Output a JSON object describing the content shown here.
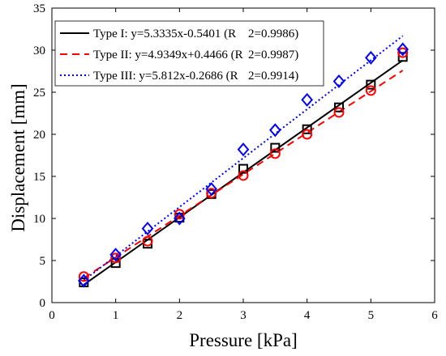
{
  "chart_data": {
    "type": "scatter",
    "xlabel": "Pressure [kPa]",
    "ylabel": "Displacement [mm]",
    "xlim": [
      0,
      6
    ],
    "ylim": [
      0,
      35
    ],
    "xticks": [
      0,
      1,
      2,
      3,
      4,
      5,
      6
    ],
    "yticks": [
      0,
      5,
      10,
      15,
      20,
      25,
      30,
      35
    ],
    "grid": false,
    "legend_position": "top-left",
    "x": [
      0.5,
      1,
      1.5,
      2,
      2.5,
      3,
      3.5,
      4,
      4.5,
      5,
      5.5
    ],
    "series": [
      {
        "name": "Type I",
        "marker": "square",
        "line_style": "solid",
        "color": "#000000",
        "values": [
          2.4,
          4.7,
          7.0,
          10.1,
          12.9,
          15.9,
          18.4,
          20.6,
          23.2,
          25.9,
          29.2
        ],
        "fit_label": "Type I: y=5.3335x-0.5401 (R",
        "r2_label": "2=0.9986)",
        "fit": {
          "slope": 5.3335,
          "intercept": -0.5401
        }
      },
      {
        "name": "Type II",
        "marker": "circle",
        "line_style": "dashed",
        "color": "#ff0000",
        "values": [
          3.1,
          5.3,
          7.3,
          10.5,
          13.0,
          15.1,
          17.7,
          20.0,
          22.6,
          25.2,
          29.7
        ],
        "fit_label": "Type II: y=4.9349x+0.4466 (R",
        "r2_label": "2=0.9987)",
        "fit": {
          "slope": 4.9349,
          "intercept": 0.4466
        }
      },
      {
        "name": "Type III",
        "marker": "diamond",
        "line_style": "dotted",
        "color": "#0000ff",
        "values": [
          2.6,
          5.7,
          8.8,
          10.0,
          13.5,
          18.2,
          20.5,
          24.1,
          26.3,
          29.1,
          30.1
        ],
        "fit_label": "Type III: y=5.812x-0.2686 (R",
        "r2_label": "2=0.9914)",
        "fit": {
          "slope": 5.812,
          "intercept": -0.2686
        }
      }
    ]
  }
}
